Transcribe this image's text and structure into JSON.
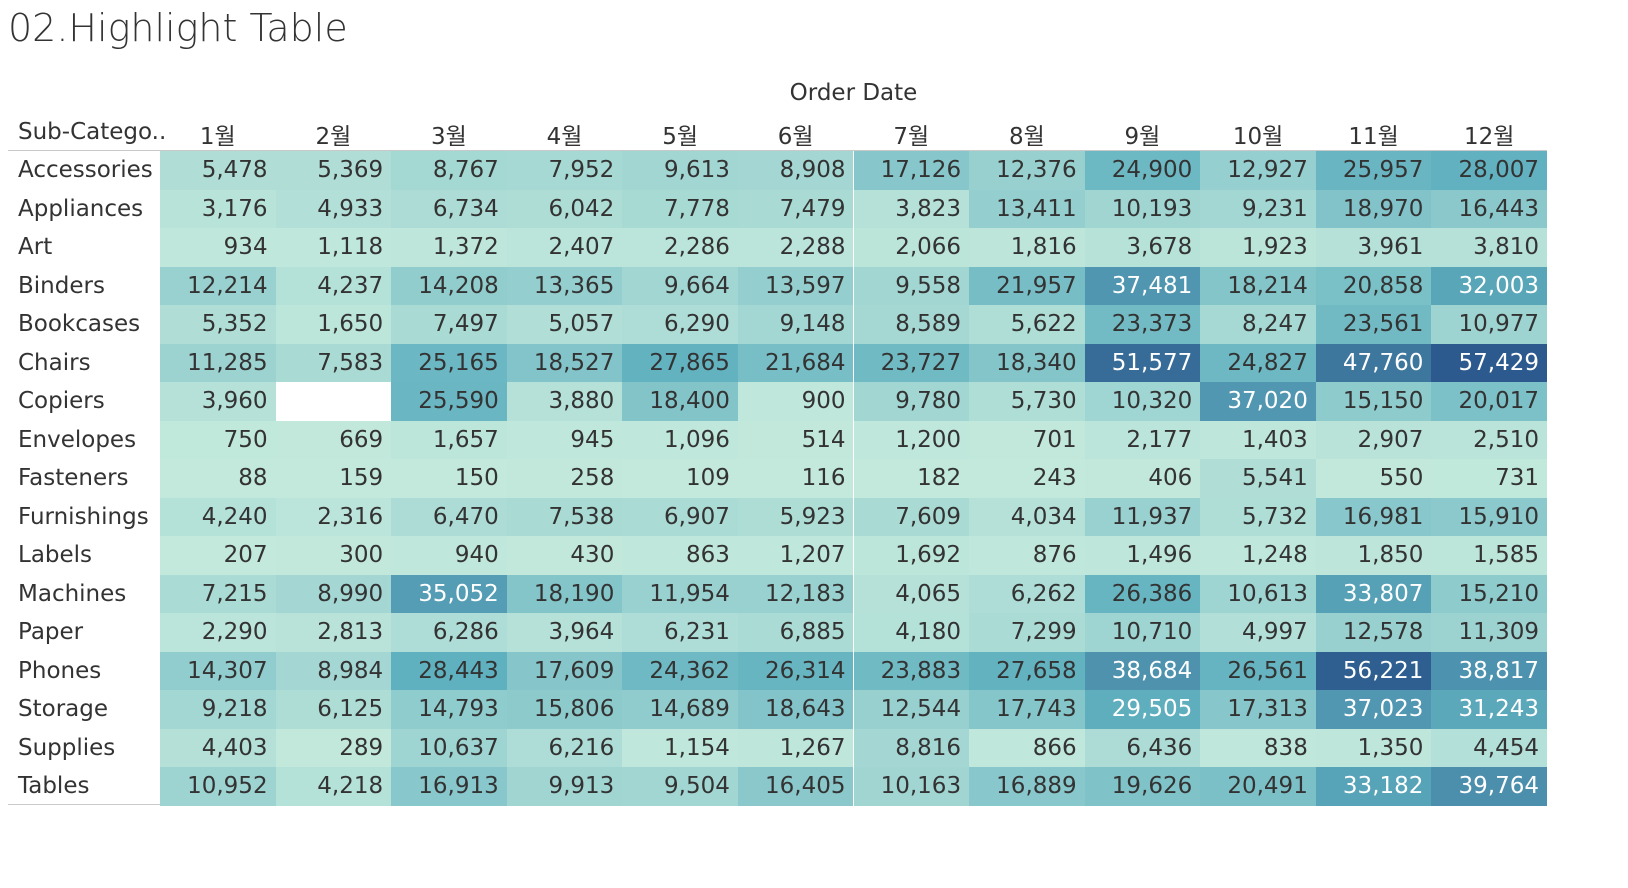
{
  "page_title": "02.Highlight Table",
  "column_group_label": "Order Date",
  "row_header_label": "Sub-Catego..",
  "chart_data": {
    "type": "heatmap",
    "title": "02.Highlight Table",
    "xlabel": "Order Date",
    "ylabel": "Sub-Catego..",
    "columns": [
      "1월",
      "2월",
      "3월",
      "4월",
      "5월",
      "6월",
      "7월",
      "8월",
      "9월",
      "10월",
      "11월",
      "12월"
    ],
    "rows": [
      "Accessories",
      "Appliances",
      "Art",
      "Binders",
      "Bookcases",
      "Chairs",
      "Copiers",
      "Envelopes",
      "Fasteners",
      "Furnishings",
      "Labels",
      "Machines",
      "Paper",
      "Phones",
      "Storage",
      "Supplies",
      "Tables"
    ],
    "values": [
      [
        5478,
        5369,
        8767,
        7952,
        9613,
        8908,
        17126,
        12376,
        24900,
        12927,
        25957,
        28007
      ],
      [
        3176,
        4933,
        6734,
        6042,
        7778,
        7479,
        3823,
        13411,
        10193,
        9231,
        18970,
        16443
      ],
      [
        934,
        1118,
        1372,
        2407,
        2286,
        2288,
        2066,
        1816,
        3678,
        1923,
        3961,
        3810
      ],
      [
        12214,
        4237,
        14208,
        13365,
        9664,
        13597,
        9558,
        21957,
        37481,
        18214,
        20858,
        32003
      ],
      [
        5352,
        1650,
        7497,
        5057,
        6290,
        9148,
        8589,
        5622,
        23373,
        8247,
        23561,
        10977
      ],
      [
        11285,
        7583,
        25165,
        18527,
        27865,
        21684,
        23727,
        18340,
        51577,
        24827,
        47760,
        57429
      ],
      [
        3960,
        null,
        25590,
        3880,
        18400,
        900,
        9780,
        5730,
        10320,
        37020,
        15150,
        20017
      ],
      [
        750,
        669,
        1657,
        945,
        1096,
        514,
        1200,
        701,
        2177,
        1403,
        2907,
        2510
      ],
      [
        88,
        159,
        150,
        258,
        109,
        116,
        182,
        243,
        406,
        5541,
        550,
        731
      ],
      [
        4240,
        2316,
        6470,
        7538,
        6907,
        5923,
        7609,
        4034,
        11937,
        5732,
        16981,
        15910
      ],
      [
        207,
        300,
        940,
        430,
        863,
        1207,
        1692,
        876,
        1496,
        1248,
        1850,
        1585
      ],
      [
        7215,
        8990,
        35052,
        18190,
        11954,
        12183,
        4065,
        6262,
        26386,
        10613,
        33807,
        15210
      ],
      [
        2290,
        2813,
        6286,
        3964,
        6231,
        6885,
        4180,
        7299,
        10710,
        4997,
        12578,
        11309
      ],
      [
        14307,
        8984,
        28443,
        17609,
        24362,
        26314,
        23883,
        27658,
        38684,
        26561,
        56221,
        38817
      ],
      [
        9218,
        6125,
        14793,
        15806,
        14689,
        18643,
        12544,
        17743,
        29505,
        17313,
        37023,
        31243
      ],
      [
        4403,
        289,
        10637,
        6216,
        1154,
        1267,
        8816,
        866,
        6436,
        838,
        1350,
        4454
      ],
      [
        10952,
        4218,
        16913,
        9913,
        9504,
        16405,
        10163,
        16889,
        19626,
        20491,
        33182,
        39764
      ]
    ],
    "color_scale": {
      "low": "#c3e9dc",
      "mid": "#5fb0bf",
      "high": "#2d5a8e",
      "domain": [
        0,
        57429
      ]
    },
    "grid": false,
    "legend": "none"
  }
}
